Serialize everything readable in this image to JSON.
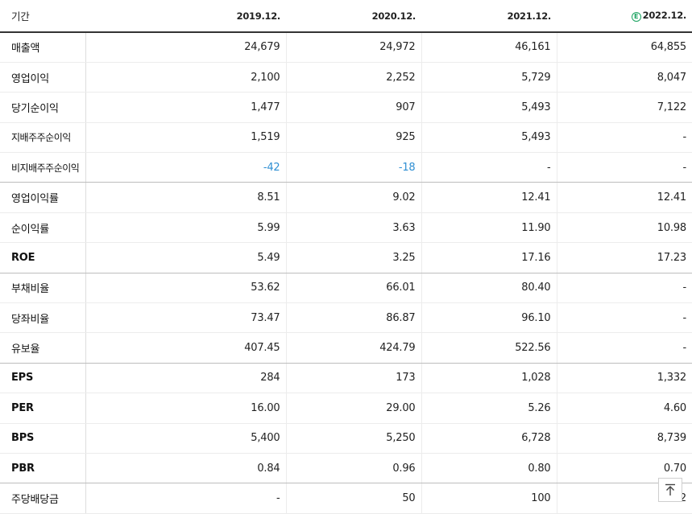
{
  "header": {
    "period_label": "기간",
    "estimate_icon": "E",
    "columns": [
      "2019.12.",
      "2020.12.",
      "2021.12.",
      "2022.12."
    ]
  },
  "rows": [
    {
      "label": "매출액",
      "values": [
        "24,679",
        "24,972",
        "46,161",
        "64,855"
      ]
    },
    {
      "label": "영업이익",
      "values": [
        "2,100",
        "2,252",
        "5,729",
        "8,047"
      ]
    },
    {
      "label": "당기순이익",
      "values": [
        "1,477",
        "907",
        "5,493",
        "7,122"
      ]
    },
    {
      "label": "지배주주순이익",
      "values": [
        "1,519",
        "925",
        "5,493",
        "-"
      ]
    },
    {
      "label": "비지배주주순이익",
      "values": [
        "-42",
        "-18",
        "-",
        "-"
      ]
    },
    {
      "label": "영업이익률",
      "values": [
        "8.51",
        "9.02",
        "12.41",
        "12.41"
      ]
    },
    {
      "label": "순이익률",
      "values": [
        "5.99",
        "3.63",
        "11.90",
        "10.98"
      ]
    },
    {
      "label": "ROE",
      "values": [
        "5.49",
        "3.25",
        "17.16",
        "17.23"
      ]
    },
    {
      "label": "부채비율",
      "values": [
        "53.62",
        "66.01",
        "80.40",
        "-"
      ]
    },
    {
      "label": "당좌비율",
      "values": [
        "73.47",
        "86.87",
        "96.10",
        "-"
      ]
    },
    {
      "label": "유보율",
      "values": [
        "407.45",
        "424.79",
        "522.56",
        "-"
      ]
    },
    {
      "label": "EPS",
      "values": [
        "284",
        "173",
        "1,028",
        "1,332"
      ]
    },
    {
      "label": "PER",
      "values": [
        "16.00",
        "29.00",
        "5.26",
        "4.60"
      ]
    },
    {
      "label": "BPS",
      "values": [
        "5,400",
        "5,250",
        "6,728",
        "8,739"
      ]
    },
    {
      "label": "PBR",
      "values": [
        "0.84",
        "0.96",
        "0.80",
        "0.70"
      ]
    },
    {
      "label": "주당배당금",
      "values": [
        "-",
        "50",
        "100",
        "2"
      ]
    }
  ],
  "scroll_top_icon": "arrow-up-to-top",
  "colors": {
    "negative": "#2f8fd3",
    "estimate": "#1aa260",
    "header_rule": "#333333"
  }
}
